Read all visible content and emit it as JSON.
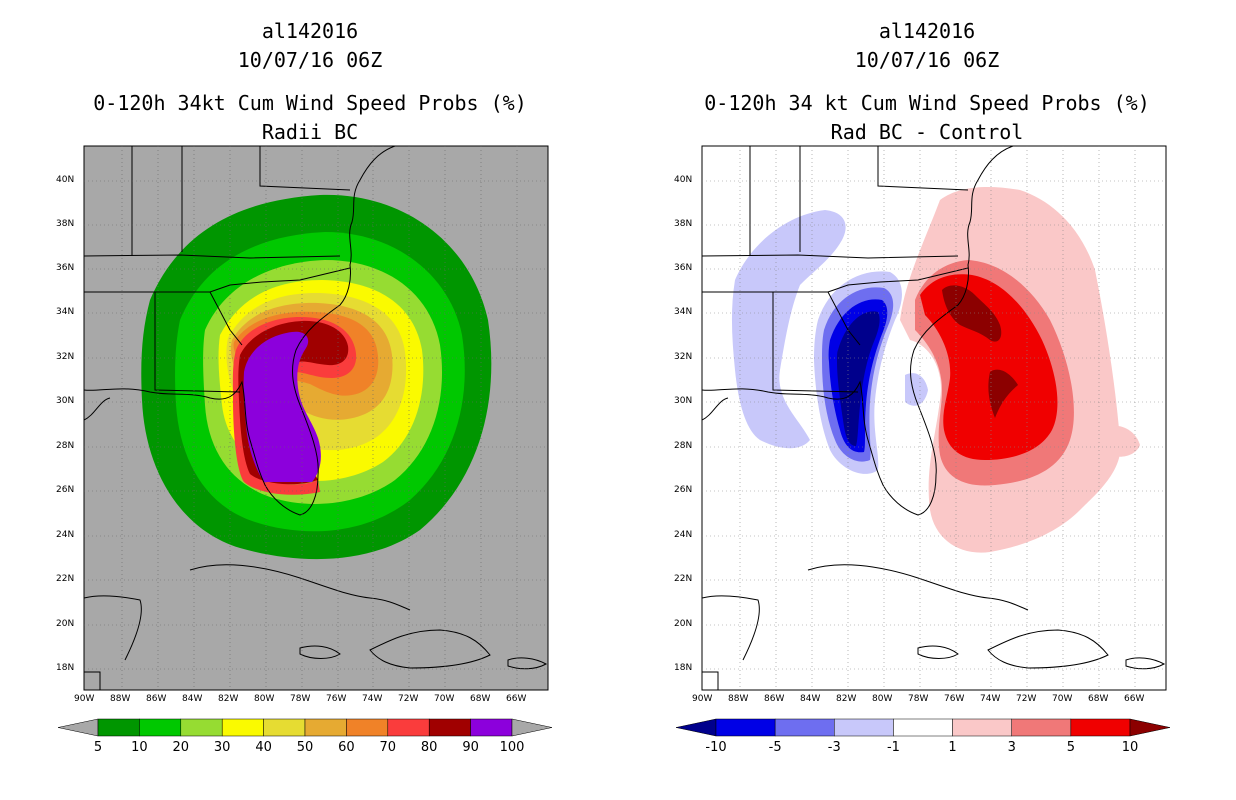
{
  "left_panel": {
    "storm_id": "al142016",
    "datetime": "10/07/16 06Z",
    "title": "0-120h 34kt Cum Wind Speed Probs (%)",
    "subtitle": "Radii BC",
    "colorbar": {
      "labels": [
        "5",
        "10",
        "20",
        "30",
        "40",
        "50",
        "60",
        "70",
        "80",
        "90",
        "100"
      ],
      "colors": [
        "#009600",
        "#00c800",
        "#96dc32",
        "#fafa00",
        "#e6dc32",
        "#e6aa32",
        "#f08228",
        "#fa3c3c",
        "#a00000",
        "#8c00dc"
      ],
      "under_color": "#a8a8a8",
      "over_color": "#a8a8a8"
    },
    "background_color": "#a8a8a8"
  },
  "right_panel": {
    "storm_id": "al142016",
    "datetime": "10/07/16 06Z",
    "title": "0-120h 34 kt Cum Wind Speed Probs (%)",
    "subtitle": "Rad BC - Control",
    "colorbar": {
      "labels": [
        "-10",
        "-5",
        "-3",
        "-1",
        "1",
        "3",
        "5",
        "10"
      ],
      "colors": [
        "#0000e6",
        "#6e6ef0",
        "#c8c8fa",
        "#ffffff",
        "#fac8c8",
        "#f07878",
        "#f00000"
      ],
      "under_color": "#00008c",
      "over_color": "#8c0000"
    }
  },
  "axes": {
    "lat_labels": [
      "40N",
      "38N",
      "36N",
      "34N",
      "32N",
      "30N",
      "28N",
      "26N",
      "24N",
      "22N",
      "20N",
      "18N"
    ],
    "lon_labels": [
      "90W",
      "88W",
      "86W",
      "84W",
      "82W",
      "80W",
      "78W",
      "76W",
      "74W",
      "72W",
      "70W",
      "68W",
      "66W"
    ]
  }
}
